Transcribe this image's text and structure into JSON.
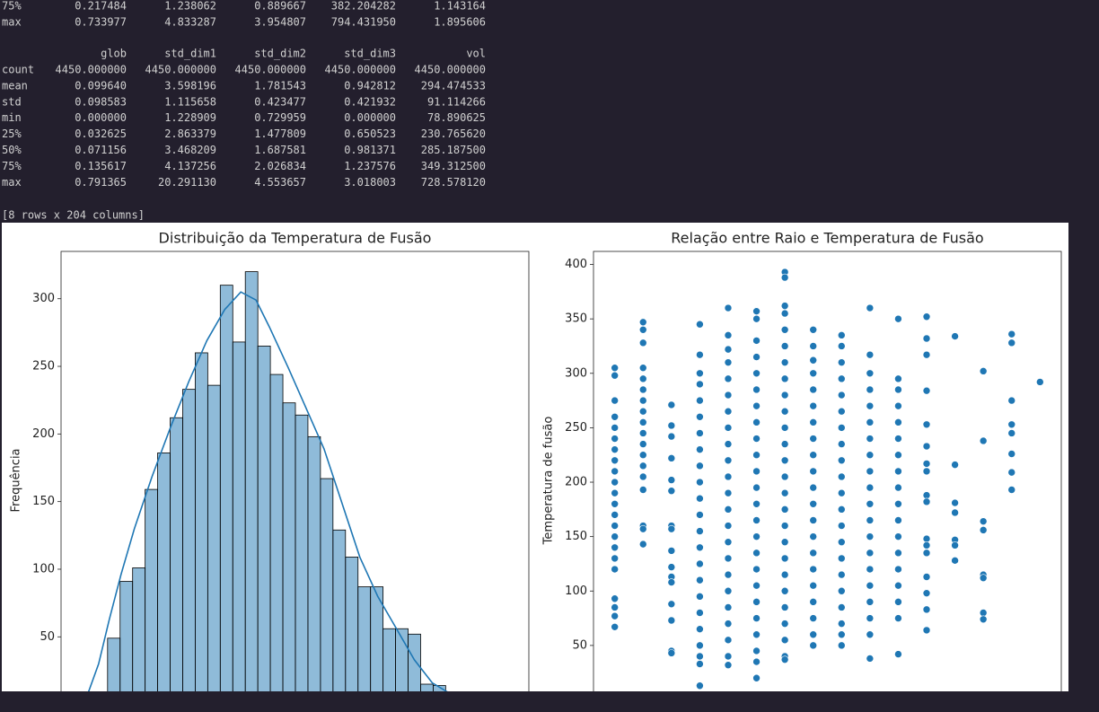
{
  "console": {
    "partial_rows": [
      [
        "75%",
        "0.217484",
        "1.238062",
        "0.889667",
        "382.204282",
        "1.143164"
      ],
      [
        "max",
        "0.733977",
        "4.833287",
        "3.954807",
        "794.431950",
        "1.895606"
      ]
    ],
    "table": {
      "columns": [
        "glob",
        "std_dim1",
        "std_dim2",
        "std_dim3",
        "vol"
      ],
      "rows": [
        [
          "count",
          "4450.000000",
          "4450.000000",
          "4450.000000",
          "4450.000000",
          "4450.000000"
        ],
        [
          "mean",
          "0.099640",
          "3.598196",
          "1.781543",
          "0.942812",
          "294.474533"
        ],
        [
          "std",
          "0.098583",
          "1.115658",
          "0.423477",
          "0.421932",
          "91.114266"
        ],
        [
          "min",
          "0.000000",
          "1.228909",
          "0.729959",
          "0.000000",
          "78.890625"
        ],
        [
          "25%",
          "0.032625",
          "2.863379",
          "1.477809",
          "0.650523",
          "230.765620"
        ],
        [
          "50%",
          "0.071156",
          "3.468209",
          "1.687581",
          "0.981371",
          "285.187500"
        ],
        [
          "75%",
          "0.135617",
          "4.137256",
          "2.026834",
          "1.237576",
          "349.312500"
        ],
        [
          "max",
          "0.791365",
          "20.291130",
          "4.553657",
          "3.018003",
          "728.578120"
        ]
      ]
    },
    "footer": "[8 rows x 204 columns]"
  },
  "chart_data": [
    {
      "type": "histogram",
      "title": "Distribuição da Temperatura de Fusão",
      "ylabel": "Frequência",
      "bins": [
        13,
        27,
        41,
        55,
        69,
        83,
        97,
        111,
        125,
        139,
        153,
        167,
        181,
        195,
        209,
        223,
        237,
        251,
        265,
        279,
        293,
        307,
        321,
        335,
        349,
        363,
        377,
        391
      ],
      "values": [
        49,
        91,
        101,
        159,
        186,
        212,
        233,
        260,
        236,
        310,
        268,
        320,
        265,
        244,
        223,
        214,
        198,
        167,
        129,
        109,
        87,
        87,
        56,
        56,
        52,
        15,
        14
      ],
      "color": "#1f77b4",
      "edgecolor": "#000000",
      "alpha": 0.5,
      "kde": {
        "x": [
          -9,
          3,
          15,
          28,
          43,
          63,
          84,
          104,
          124,
          144,
          162,
          179,
          194,
          215,
          235,
          255,
          275,
          295,
          315,
          336,
          356,
          376,
          396
        ],
        "values": [
          8,
          30,
          63,
          96,
          130,
          169,
          206,
          239,
          269,
          292,
          305,
          299,
          279,
          249,
          219,
          189,
          149,
          109,
          80,
          56,
          33,
          16,
          8
        ]
      },
      "xlim": [
        -39,
        484
      ],
      "ylim": [
        0,
        335
      ],
      "yticks": [
        50,
        100,
        150,
        200,
        250,
        300
      ]
    },
    {
      "type": "scatter",
      "title": "Relação entre Raio e Temperatura de Fusão",
      "ylabel": "Temperatura de fusão",
      "color": "#1f77b4",
      "columns": [
        {
          "x": 1,
          "values": [
            305,
            298,
            275,
            260,
            250,
            240,
            230,
            220,
            210,
            200,
            190,
            180,
            170,
            160,
            150,
            140,
            130,
            120,
            93,
            85,
            77,
            67
          ]
        },
        {
          "x": 2,
          "values": [
            347,
            340,
            328,
            305,
            295,
            285,
            275,
            265,
            255,
            245,
            235,
            225,
            215,
            205,
            193,
            160,
            157,
            143
          ]
        },
        {
          "x": 3,
          "values": [
            271,
            252,
            242,
            222,
            202,
            192,
            160,
            157,
            137,
            122,
            113,
            108,
            88,
            73,
            45,
            43
          ]
        },
        {
          "x": 4,
          "values": [
            345,
            317,
            300,
            290,
            275,
            260,
            245,
            230,
            215,
            200,
            185,
            170,
            155,
            140,
            125,
            110,
            95,
            80,
            65,
            50,
            40,
            33,
            13
          ]
        },
        {
          "x": 5,
          "values": [
            360,
            335,
            322,
            310,
            295,
            280,
            265,
            250,
            235,
            220,
            205,
            190,
            175,
            160,
            145,
            130,
            115,
            100,
            85,
            70,
            55,
            40,
            32
          ]
        },
        {
          "x": 6,
          "values": [
            357,
            350,
            330,
            315,
            300,
            285,
            270,
            255,
            240,
            225,
            210,
            195,
            180,
            165,
            150,
            135,
            120,
            105,
            90,
            75,
            60,
            45,
            35,
            20
          ]
        },
        {
          "x": 7,
          "values": [
            393,
            388,
            362,
            355,
            340,
            325,
            310,
            295,
            280,
            265,
            250,
            235,
            220,
            205,
            190,
            175,
            160,
            145,
            130,
            115,
            100,
            85,
            70,
            55,
            40,
            37
          ]
        },
        {
          "x": 8,
          "values": [
            340,
            325,
            312,
            300,
            285,
            270,
            255,
            240,
            225,
            210,
            195,
            180,
            165,
            150,
            135,
            120,
            105,
            90,
            75,
            60,
            50
          ]
        },
        {
          "x": 9,
          "values": [
            335,
            325,
            310,
            295,
            280,
            265,
            250,
            235,
            220,
            205,
            190,
            175,
            160,
            145,
            130,
            115,
            100,
            85,
            70,
            60,
            50
          ]
        },
        {
          "x": 10,
          "values": [
            360,
            317,
            300,
            285,
            270,
            255,
            240,
            225,
            210,
            195,
            180,
            165,
            150,
            135,
            120,
            105,
            90,
            75,
            60,
            38
          ]
        },
        {
          "x": 11,
          "values": [
            350,
            295,
            285,
            270,
            255,
            240,
            225,
            210,
            195,
            180,
            165,
            150,
            135,
            120,
            105,
            90,
            75,
            42
          ]
        },
        {
          "x": 12,
          "values": [
            352,
            332,
            317,
            284,
            253,
            233,
            217,
            210,
            188,
            182,
            148,
            142,
            135,
            113,
            98,
            83,
            64
          ]
        },
        {
          "x": 13,
          "values": [
            334,
            216,
            181,
            172,
            147,
            142,
            128
          ]
        },
        {
          "x": 14,
          "values": [
            302,
            238,
            164,
            156,
            115,
            112,
            80,
            74
          ]
        },
        {
          "x": 15,
          "values": [
            336,
            328,
            275,
            253,
            245,
            226,
            209,
            193
          ]
        },
        {
          "x": 16,
          "values": [
            292
          ]
        }
      ],
      "xlim": [
        0.25,
        16.75
      ],
      "ylim": [
        0,
        412
      ],
      "yticks": [
        50,
        100,
        150,
        200,
        250,
        300,
        350,
        400
      ]
    }
  ]
}
